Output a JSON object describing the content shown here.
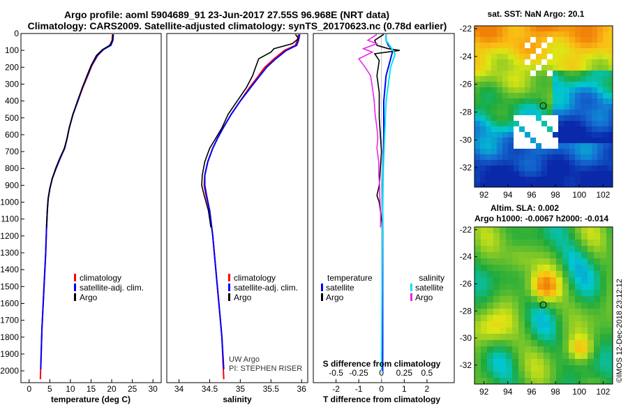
{
  "header": {
    "title_line1": "Argo profile: aoml 5904689_91 23-Jun-2017 27.55S 96.968E (NRT data)",
    "title_line2": "Climatology: CARS2009. Satellite-adjusted climatology: synTS_20170623.nc (0.78d earlier)"
  },
  "colors": {
    "climatology": "#ff0000",
    "satellite": "#0000ff",
    "argo": "#000000",
    "sal_satellite": "#00e5ee",
    "sal_argo": "#ee22ee"
  },
  "chart_data": [
    {
      "type": "line",
      "id": "temperature_profile",
      "xlabel": "temperature (deg C)",
      "ylabel": "",
      "xlim": [
        -2,
        32
      ],
      "ylim": [
        2070,
        0
      ],
      "xticks": [
        0,
        5,
        10,
        15,
        20,
        25,
        30
      ],
      "yticks": [
        0,
        100,
        200,
        300,
        400,
        500,
        600,
        700,
        800,
        900,
        1000,
        1100,
        1200,
        1300,
        1400,
        1500,
        1600,
        1700,
        1800,
        1900,
        2000
      ],
      "legend": [
        "climatology",
        "satellite-adj. clim.",
        "Argo"
      ],
      "series": [
        {
          "name": "climatology",
          "points": [
            [
              20.2,
              5
            ],
            [
              20.1,
              40
            ],
            [
              19.6,
              70
            ],
            [
              18,
              95
            ],
            [
              16.6,
              130
            ],
            [
              15.2,
              190
            ],
            [
              14.2,
              250
            ],
            [
              13.0,
              320
            ],
            [
              11.8,
              400
            ],
            [
              10.6,
              480
            ],
            [
              9.7,
              560
            ],
            [
              9.2,
              620
            ],
            [
              8.6,
              680
            ],
            [
              7.5,
              740
            ],
            [
              6.5,
              800
            ],
            [
              5.6,
              860
            ],
            [
              5.0,
              920
            ],
            [
              4.6,
              980
            ],
            [
              4.4,
              1050
            ],
            [
              4.2,
              1150
            ],
            [
              4.0,
              1300
            ],
            [
              3.7,
              1450
            ],
            [
              3.4,
              1600
            ],
            [
              3.1,
              1750
            ],
            [
              2.9,
              1900
            ],
            [
              2.7,
              2050
            ]
          ]
        },
        {
          "name": "satellite-adj. clim.",
          "points": [
            [
              20.4,
              5
            ],
            [
              20.3,
              40
            ],
            [
              19.8,
              70
            ],
            [
              18,
              95
            ],
            [
              16.5,
              130
            ],
            [
              15.1,
              190
            ],
            [
              14.1,
              250
            ],
            [
              12.9,
              320
            ],
            [
              11.8,
              400
            ],
            [
              10.6,
              480
            ],
            [
              9.7,
              560
            ],
            [
              9.2,
              620
            ],
            [
              8.6,
              680
            ],
            [
              7.5,
              740
            ],
            [
              6.5,
              800
            ],
            [
              5.6,
              860
            ],
            [
              5.0,
              920
            ],
            [
              4.6,
              980
            ],
            [
              4.4,
              1050
            ],
            [
              4.2,
              1150
            ],
            [
              4.0,
              1300
            ],
            [
              3.7,
              1450
            ],
            [
              3.4,
              1600
            ],
            [
              3.1,
              1750
            ],
            [
              2.9,
              1900
            ],
            [
              2.8,
              1990
            ]
          ]
        },
        {
          "name": "Argo",
          "points": [
            [
              20.3,
              5
            ],
            [
              20.2,
              40
            ],
            [
              19.5,
              70
            ],
            [
              17.8,
              95
            ],
            [
              16.3,
              130
            ],
            [
              15.0,
              190
            ],
            [
              14.0,
              250
            ],
            [
              12.9,
              320
            ],
            [
              11.7,
              400
            ],
            [
              10.6,
              480
            ],
            [
              9.7,
              560
            ],
            [
              9.2,
              620
            ],
            [
              8.5,
              680
            ],
            [
              7.4,
              740
            ],
            [
              6.4,
              800
            ],
            [
              5.6,
              860
            ],
            [
              5.0,
              920
            ],
            [
              4.6,
              980
            ],
            [
              4.4,
              1050
            ],
            [
              4.2,
              1150
            ]
          ]
        }
      ]
    },
    {
      "type": "line",
      "id": "salinity_profile",
      "xlabel": "salinity",
      "xlim": [
        33.8,
        36.1
      ],
      "ylim": [
        2070,
        0
      ],
      "xticks": [
        34,
        34.5,
        35,
        35.5,
        36
      ],
      "xticklabels": [
        "34",
        "34.5",
        "35",
        "35.5",
        "36"
      ],
      "legend": [
        "climatology",
        "satellite-adj. clim.",
        "Argo"
      ],
      "annotations": [
        "UW Argo",
        "PI: STEPHEN RISER"
      ],
      "series": [
        {
          "name": "climatology",
          "points": [
            [
              35.95,
              5
            ],
            [
              35.93,
              40
            ],
            [
              35.9,
              70
            ],
            [
              35.72,
              100
            ],
            [
              35.55,
              150
            ],
            [
              35.4,
              200
            ],
            [
              35.3,
              250
            ],
            [
              35.15,
              320
            ],
            [
              35.0,
              400
            ],
            [
              34.85,
              480
            ],
            [
              34.72,
              560
            ],
            [
              34.63,
              620
            ],
            [
              34.55,
              680
            ],
            [
              34.47,
              760
            ],
            [
              34.42,
              840
            ],
            [
              34.41,
              900
            ],
            [
              34.44,
              960
            ],
            [
              34.5,
              1050
            ],
            [
              34.55,
              1200
            ],
            [
              34.6,
              1400
            ],
            [
              34.65,
              1600
            ],
            [
              34.7,
              1800
            ],
            [
              34.73,
              2050
            ]
          ]
        },
        {
          "name": "satellite-adj. clim.",
          "points": [
            [
              35.97,
              5
            ],
            [
              35.95,
              40
            ],
            [
              35.92,
              70
            ],
            [
              35.75,
              100
            ],
            [
              35.58,
              150
            ],
            [
              35.43,
              200
            ],
            [
              35.32,
              250
            ],
            [
              35.17,
              320
            ],
            [
              35.0,
              400
            ],
            [
              34.85,
              480
            ],
            [
              34.72,
              560
            ],
            [
              34.63,
              620
            ],
            [
              34.55,
              680
            ],
            [
              34.47,
              760
            ],
            [
              34.42,
              840
            ],
            [
              34.42,
              900
            ],
            [
              34.45,
              960
            ],
            [
              34.5,
              1050
            ],
            [
              34.55,
              1200
            ],
            [
              34.6,
              1400
            ],
            [
              34.65,
              1600
            ],
            [
              34.7,
              1800
            ],
            [
              34.73,
              1990
            ]
          ]
        },
        {
          "name": "Argo",
          "points": [
            [
              35.9,
              5
            ],
            [
              35.95,
              30
            ],
            [
              35.85,
              60
            ],
            [
              35.55,
              90
            ],
            [
              35.5,
              110
            ],
            [
              35.3,
              150
            ],
            [
              35.25,
              200
            ],
            [
              35.2,
              250
            ],
            [
              35.1,
              320
            ],
            [
              34.95,
              400
            ],
            [
              34.8,
              480
            ],
            [
              34.7,
              560
            ],
            [
              34.6,
              620
            ],
            [
              34.5,
              680
            ],
            [
              34.42,
              760
            ],
            [
              34.38,
              840
            ],
            [
              34.37,
              900
            ],
            [
              34.41,
              960
            ],
            [
              34.48,
              1050
            ],
            [
              34.52,
              1150
            ]
          ]
        }
      ]
    },
    {
      "type": "line",
      "id": "difference_profile",
      "xlabel": "T difference from climatology",
      "xlabel_top": "S difference from climatology",
      "xlim": [
        -3,
        3.2
      ],
      "ylim": [
        2070,
        0
      ],
      "xticks": [
        -2,
        -1,
        0,
        1,
        2
      ],
      "s_xticklabels": [
        "-0.5",
        "-0.25",
        "0",
        "0.25",
        "0.5"
      ],
      "legend_groups": [
        {
          "title": "temperature",
          "entries": [
            "satellite",
            "Argo"
          ]
        },
        {
          "title": "salinity",
          "entries": [
            "satellite",
            "Argo"
          ]
        }
      ],
      "series": [
        {
          "name": "temperature satellite",
          "points": [
            [
              0.2,
              5
            ],
            [
              0.2,
              40
            ],
            [
              0.3,
              70
            ],
            [
              0.5,
              100
            ],
            [
              0.4,
              150
            ],
            [
              0.2,
              250
            ],
            [
              0.1,
              400
            ],
            [
              0.1,
              600
            ],
            [
              0.05,
              900
            ],
            [
              0.05,
              1400
            ],
            [
              0.05,
              2000
            ]
          ]
        },
        {
          "name": "temperature Argo",
          "points": [
            [
              0.1,
              5
            ],
            [
              -0.3,
              40
            ],
            [
              -0.2,
              70
            ],
            [
              0.3,
              90
            ],
            [
              0.8,
              100
            ],
            [
              -0.3,
              120
            ],
            [
              -0.1,
              160
            ],
            [
              -0.2,
              250
            ],
            [
              -0.1,
              350
            ],
            [
              -0.1,
              500
            ],
            [
              0,
              700
            ],
            [
              -0.1,
              900
            ],
            [
              -0.2,
              960
            ],
            [
              -0.1,
              1000
            ],
            [
              0,
              1100
            ],
            [
              0.05,
              1150
            ]
          ]
        },
        {
          "name": "salinity satellite",
          "points": [
            [
              0.05,
              5
            ],
            [
              0.05,
              40
            ],
            [
              0.1,
              80
            ],
            [
              0.15,
              120
            ],
            [
              0.1,
              200
            ],
            [
              0.05,
              400
            ],
            [
              0.02,
              800
            ],
            [
              0.01,
              1200
            ],
            [
              0.0,
              2000
            ]
          ]
        },
        {
          "name": "salinity Argo",
          "points": [
            [
              -0.05,
              5
            ],
            [
              -0.15,
              40
            ],
            [
              -0.05,
              60
            ],
            [
              -0.2,
              90
            ],
            [
              -0.1,
              110
            ],
            [
              -0.25,
              150
            ],
            [
              -0.18,
              200
            ],
            [
              -0.12,
              250
            ],
            [
              -0.1,
              320
            ],
            [
              -0.08,
              400
            ],
            [
              -0.07,
              480
            ],
            [
              -0.05,
              560
            ],
            [
              -0.04,
              620
            ],
            [
              -0.05,
              680
            ],
            [
              -0.03,
              760
            ],
            [
              -0.03,
              840
            ],
            [
              -0.02,
              900
            ],
            [
              -0.02,
              960
            ],
            [
              -0.01,
              1050
            ],
            [
              -0.01,
              1150
            ]
          ]
        }
      ]
    },
    {
      "type": "heatmap",
      "id": "sst_map",
      "title": "sat. SST: NaN Argo: 20.1",
      "xlim": [
        91.2,
        102.8
      ],
      "ylim": [
        -33.4,
        -21.8
      ],
      "xticks": [
        92,
        94,
        96,
        98,
        100,
        102
      ],
      "yticks": [
        -22,
        -24,
        -26,
        -28,
        -30,
        -32
      ],
      "marker": {
        "lon": 96.97,
        "lat": -27.55
      }
    },
    {
      "type": "heatmap",
      "id": "sla_map",
      "title": "Altim. SLA: 0.002",
      "subtitle": "Argo h1000: -0.0067 h2000: -0.014",
      "xlim": [
        91.2,
        102.8
      ],
      "ylim": [
        -33.4,
        -21.8
      ],
      "xticks": [
        92,
        94,
        96,
        98,
        100,
        102
      ],
      "yticks": [
        -22,
        -24,
        -26,
        -28,
        -30,
        -32
      ],
      "marker": {
        "lon": 96.97,
        "lat": -27.55
      }
    }
  ],
  "footer": {
    "credit": "©IMOS 12-Dec-2018 23:12:12"
  }
}
